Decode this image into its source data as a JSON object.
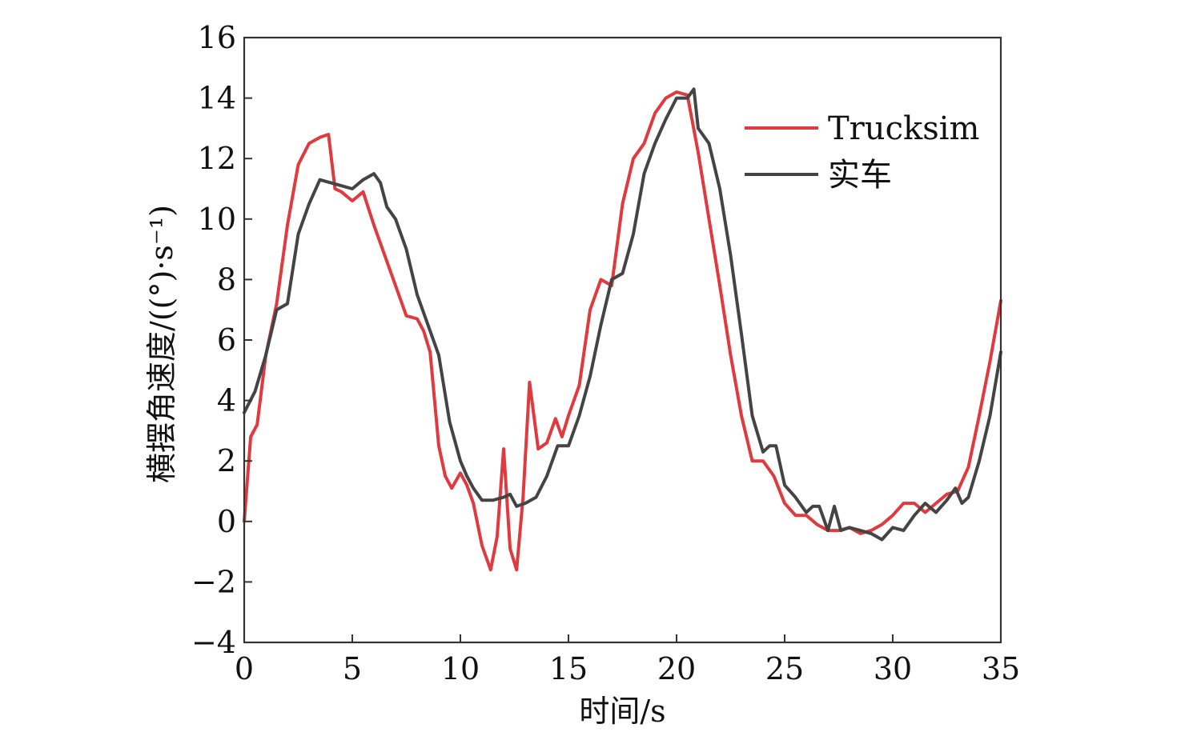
{
  "chart_data": {
    "type": "line",
    "xlabel": "时间/s",
    "ylabel": "横摆角速度/((°)·s⁻¹)",
    "xlim": [
      0,
      35
    ],
    "ylim": [
      -4,
      16
    ],
    "xticks": [
      "0",
      "5",
      "10",
      "15",
      "20",
      "25",
      "30",
      "35"
    ],
    "yticks": [
      "−4",
      "−2",
      "0",
      "2",
      "4",
      "6",
      "8",
      "10",
      "12",
      "14",
      "16"
    ],
    "grid": false,
    "legend_position": "top-right",
    "series": [
      {
        "name": "Trucksim",
        "color": "#e03a3e",
        "x": [
          0,
          0.3,
          0.6,
          1,
          1.5,
          2,
          2.5,
          3,
          3.5,
          3.9,
          4.2,
          4.5,
          5,
          5.5,
          6,
          6.5,
          7,
          7.5,
          8,
          8.3,
          8.6,
          9,
          9.3,
          9.6,
          10,
          10.3,
          10.6,
          11,
          11.4,
          11.7,
          12,
          12.3,
          12.6,
          12.9,
          13.2,
          13.6,
          14,
          14.4,
          14.7,
          15,
          15.5,
          16,
          16.5,
          17,
          17.5,
          18,
          18.5,
          19,
          19.5,
          20,
          20.5,
          21,
          21.5,
          22,
          22.5,
          23,
          23.5,
          24,
          24.5,
          25,
          25.5,
          26,
          26.5,
          27,
          27.5,
          28,
          28.5,
          29,
          29.5,
          30,
          30.5,
          31,
          31.5,
          32,
          32.5,
          33,
          33.5,
          34,
          34.5,
          35
        ],
        "y": [
          0,
          2.8,
          3.2,
          5.5,
          7.2,
          9.8,
          11.8,
          12.5,
          12.7,
          12.8,
          11.0,
          10.9,
          10.6,
          10.9,
          9.8,
          8.8,
          7.8,
          6.8,
          6.7,
          6.3,
          5.6,
          2.5,
          1.5,
          1.1,
          1.6,
          1.2,
          0.6,
          -0.8,
          -1.6,
          -0.5,
          2.4,
          -0.9,
          -1.6,
          0.8,
          4.6,
          2.4,
          2.6,
          3.4,
          2.8,
          3.5,
          4.5,
          7.0,
          8.0,
          7.8,
          10.5,
          12.0,
          12.5,
          13.5,
          14.0,
          14.2,
          14.1,
          12.2,
          10.0,
          7.8,
          5.5,
          3.5,
          2.0,
          2.0,
          1.5,
          0.6,
          0.2,
          0.2,
          -0.1,
          -0.3,
          -0.3,
          -0.2,
          -0.4,
          -0.3,
          -0.1,
          0.2,
          0.6,
          0.6,
          0.3,
          0.6,
          0.9,
          1.0,
          1.8,
          3.5,
          5.3,
          7.3
        ]
      },
      {
        "name": "实车",
        "color": "#444444",
        "x": [
          0,
          0.5,
          1,
          1.5,
          2,
          2.5,
          3,
          3.5,
          4,
          4.5,
          5,
          5.5,
          6,
          6.3,
          6.6,
          7,
          7.5,
          8,
          8.5,
          9,
          9.5,
          10,
          10.3,
          10.6,
          11,
          11.5,
          12,
          12.3,
          12.6,
          13,
          13.5,
          14,
          14.5,
          15,
          15.5,
          16,
          16.5,
          17,
          17.5,
          18,
          18.5,
          19,
          19.5,
          20,
          20.5,
          20.8,
          21,
          21.5,
          22,
          22.5,
          23,
          23.5,
          24,
          24.3,
          24.6,
          25,
          25.5,
          26,
          26.3,
          26.6,
          27,
          27.3,
          27.6,
          28,
          28.5,
          29,
          29.5,
          30,
          30.5,
          31,
          31.5,
          32,
          32.5,
          32.9,
          33.2,
          33.5,
          34,
          34.5,
          35
        ],
        "y": [
          3.6,
          4.3,
          5.5,
          7.0,
          7.2,
          9.5,
          10.5,
          11.3,
          11.2,
          11.1,
          11.0,
          11.3,
          11.5,
          11.2,
          10.4,
          10.0,
          9.0,
          7.5,
          6.5,
          5.5,
          3.3,
          2.0,
          1.5,
          1.1,
          0.7,
          0.7,
          0.8,
          0.9,
          0.5,
          0.6,
          0.8,
          1.5,
          2.5,
          2.5,
          3.5,
          4.8,
          6.5,
          8.0,
          8.2,
          9.5,
          11.5,
          12.5,
          13.3,
          14.0,
          14.0,
          14.3,
          13.0,
          12.5,
          11.0,
          8.8,
          6.2,
          3.5,
          2.3,
          2.5,
          2.5,
          1.2,
          0.8,
          0.3,
          0.5,
          0.5,
          -0.3,
          0.5,
          -0.3,
          -0.2,
          -0.3,
          -0.4,
          -0.6,
          -0.2,
          -0.3,
          0.2,
          0.6,
          0.3,
          0.7,
          1.1,
          0.6,
          0.8,
          2.0,
          3.5,
          5.6
        ]
      }
    ]
  }
}
